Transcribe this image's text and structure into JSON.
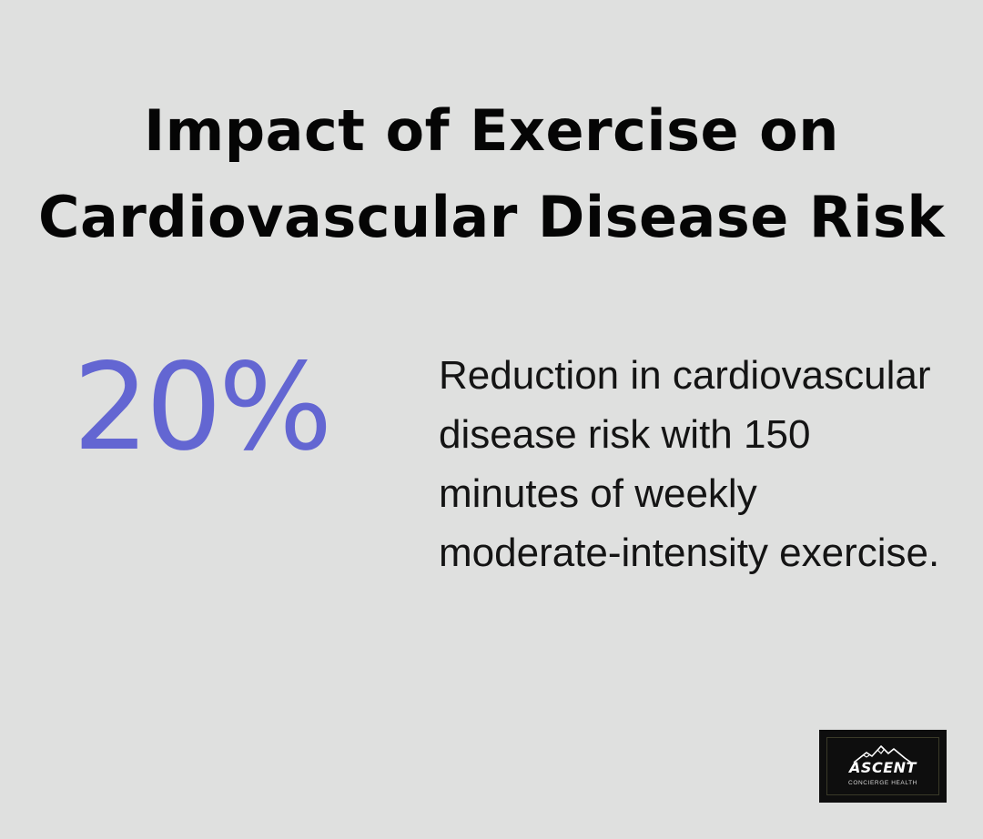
{
  "title": "Impact of Exercise on Cardiovascular Disease Risk",
  "stat": {
    "value": "20%",
    "description": "Reduction in cardiovascular disease risk with 150 minutes of weekly moderate-intensity exercise."
  },
  "logo": {
    "brand": "ASCENT",
    "tagline": "CONCIERGE HEALTH"
  },
  "colors": {
    "background": "#dfe0df",
    "accent": "#6366d2",
    "text": "#050505"
  }
}
